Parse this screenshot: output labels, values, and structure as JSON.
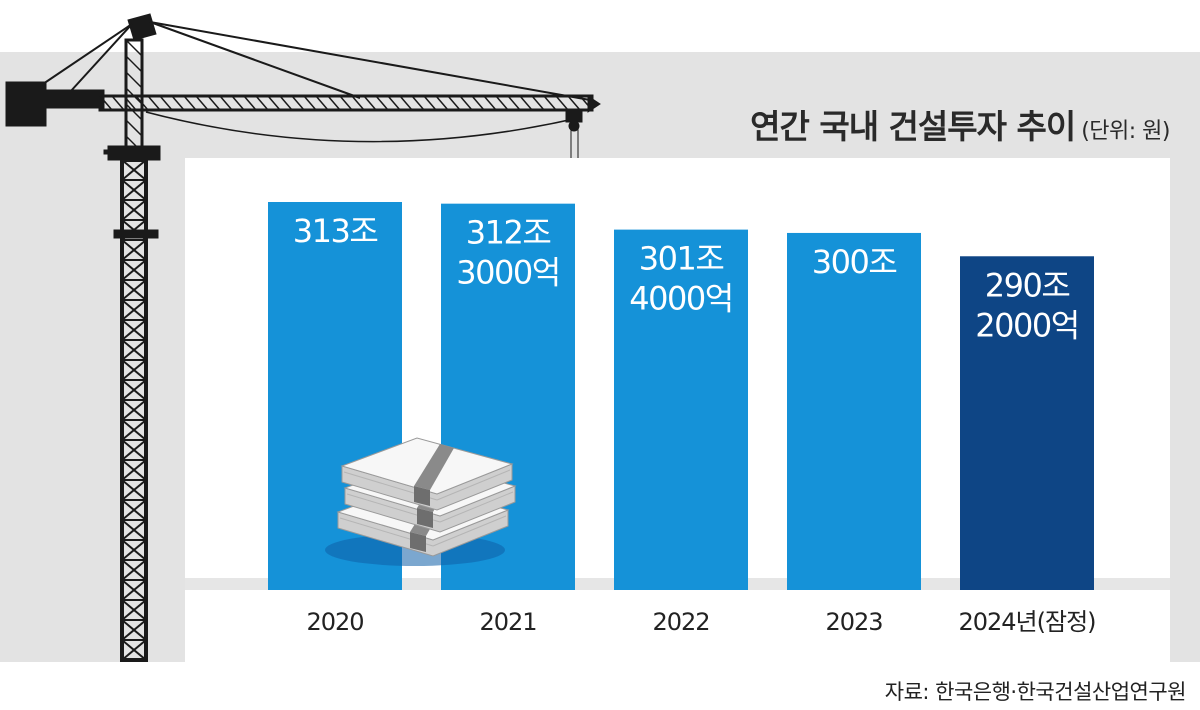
{
  "title": "연간 국내 건설투자 추이",
  "unit": "(단위: 원)",
  "source": "자료: 한국은행·한국건설산업연구원",
  "colors": {
    "background_panel": "#e3e3e3",
    "plot_panel": "#ffffff",
    "bar_actual": "#1592d8",
    "bar_estimate": "#0e4585",
    "baseline": "#e6e6e6",
    "crane": "#1a1a1a",
    "money": "#f3f3f3"
  },
  "icons": [
    "tower-crane-icon",
    "money-stack-icon"
  ],
  "chart_data": {
    "type": "bar",
    "title": "연간 국내 건설투자 추이",
    "unit_label": "(단위: 원)",
    "categories": [
      "2020",
      "2021",
      "2022",
      "2023",
      "2024년(잠정)"
    ],
    "values": [
      313,
      312.3,
      301.4,
      300,
      290.2
    ],
    "value_unit": "조 원",
    "data_labels": [
      [
        "313조"
      ],
      [
        "312조",
        "3000억"
      ],
      [
        "301조",
        "4000억"
      ],
      [
        "300조"
      ],
      [
        "290조",
        "2000억"
      ]
    ],
    "estimated_flags": [
      false,
      false,
      false,
      false,
      true
    ],
    "ylim": [
      150,
      320
    ],
    "grid": false,
    "legend": "none"
  }
}
